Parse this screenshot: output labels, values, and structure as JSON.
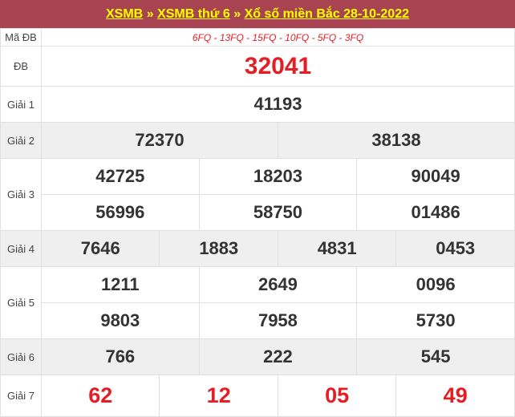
{
  "header": {
    "links": [
      "XSMB",
      "XSMB thứ 6",
      "Xổ số miền Bắc 28-10-2022"
    ],
    "sep": "»"
  },
  "ma_db": {
    "label": "Mã ĐB",
    "value": "6FQ - 13FQ - 15FQ - 10FQ - 5FQ - 3FQ"
  },
  "prizes": {
    "db": {
      "label": "ĐB",
      "values": [
        "32041"
      ]
    },
    "g1": {
      "label": "Giải 1",
      "values": [
        "41193"
      ]
    },
    "g2": {
      "label": "Giải 2",
      "values": [
        "72370",
        "38138"
      ]
    },
    "g3": {
      "label": "Giải 3",
      "values": [
        "42725",
        "18203",
        "90049",
        "56996",
        "58750",
        "01486"
      ]
    },
    "g4": {
      "label": "Giải 4",
      "values": [
        "7646",
        "1883",
        "4831",
        "0453"
      ]
    },
    "g5": {
      "label": "Giải 5",
      "values": [
        "1211",
        "2649",
        "0096",
        "9803",
        "7958",
        "5730"
      ]
    },
    "g6": {
      "label": "Giải 6",
      "values": [
        "766",
        "222",
        "545"
      ]
    },
    "g7": {
      "label": "Giải 7",
      "values": [
        "62",
        "12",
        "05",
        "49"
      ]
    }
  },
  "colors": {
    "header_bg": "#a84452",
    "link": "#ffff00",
    "highlight": "#e31e24"
  }
}
